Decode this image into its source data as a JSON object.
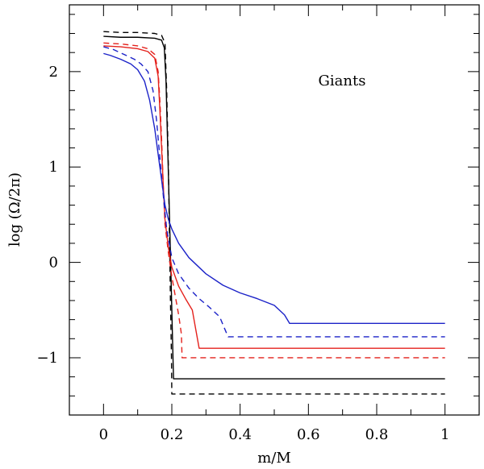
{
  "chart_data": {
    "type": "line",
    "title": "",
    "xlabel": "m/M",
    "ylabel": "log  (Ω/2π)",
    "annotation": "Giants",
    "xlim": [
      -0.1,
      1.1
    ],
    "ylim": [
      -1.6,
      2.7
    ],
    "x_ticks": [
      0,
      0.2,
      0.4,
      0.6,
      0.8,
      1
    ],
    "x_tick_labels": [
      "0",
      "0.2",
      "0.4",
      "0.6",
      "0.8",
      "1"
    ],
    "y_ticks": [
      -1,
      0,
      1,
      2
    ],
    "y_tick_labels": [
      "−1",
      "0",
      "1",
      "2"
    ],
    "grid": false,
    "series": [
      {
        "color": "#000000",
        "dash": true,
        "points": [
          [
            0,
            2.42
          ],
          [
            0.05,
            2.41
          ],
          [
            0.1,
            2.41
          ],
          [
            0.15,
            2.4
          ],
          [
            0.17,
            2.38
          ],
          [
            0.18,
            2.3
          ],
          [
            0.185,
            1.8
          ],
          [
            0.19,
            1.0
          ],
          [
            0.193,
            0.3
          ],
          [
            0.196,
            -0.4
          ],
          [
            0.199,
            -1.0
          ],
          [
            0.2,
            -1.38
          ],
          [
            0.3,
            -1.38
          ],
          [
            0.5,
            -1.38
          ],
          [
            0.7,
            -1.38
          ],
          [
            1,
            -1.38
          ]
        ]
      },
      {
        "color": "#000000",
        "dash": false,
        "points": [
          [
            0,
            2.37
          ],
          [
            0.05,
            2.36
          ],
          [
            0.1,
            2.36
          ],
          [
            0.15,
            2.35
          ],
          [
            0.17,
            2.33
          ],
          [
            0.178,
            2.25
          ],
          [
            0.183,
            1.9
          ],
          [
            0.188,
            1.2
          ],
          [
            0.193,
            0.5
          ],
          [
            0.198,
            -0.2
          ],
          [
            0.202,
            -0.8
          ],
          [
            0.205,
            -1.22
          ],
          [
            0.3,
            -1.22
          ],
          [
            0.5,
            -1.22
          ],
          [
            0.7,
            -1.22
          ],
          [
            1,
            -1.22
          ]
        ]
      },
      {
        "color": "#e4211c",
        "dash": true,
        "points": [
          [
            0,
            2.3
          ],
          [
            0.05,
            2.29
          ],
          [
            0.1,
            2.27
          ],
          [
            0.13,
            2.24
          ],
          [
            0.15,
            2.18
          ],
          [
            0.16,
            2.0
          ],
          [
            0.165,
            1.7
          ],
          [
            0.17,
            1.3
          ],
          [
            0.175,
            0.8
          ],
          [
            0.18,
            0.4
          ],
          [
            0.19,
            0.1
          ],
          [
            0.2,
            -0.15
          ],
          [
            0.21,
            -0.35
          ],
          [
            0.22,
            -0.55
          ],
          [
            0.228,
            -0.75
          ],
          [
            0.23,
            -1.0
          ],
          [
            0.3,
            -1.0
          ],
          [
            0.5,
            -1.0
          ],
          [
            0.7,
            -1.0
          ],
          [
            1,
            -1.0
          ]
        ]
      },
      {
        "color": "#e4211c",
        "dash": false,
        "points": [
          [
            0,
            2.27
          ],
          [
            0.05,
            2.26
          ],
          [
            0.1,
            2.24
          ],
          [
            0.13,
            2.21
          ],
          [
            0.15,
            2.14
          ],
          [
            0.16,
            1.95
          ],
          [
            0.165,
            1.6
          ],
          [
            0.17,
            1.2
          ],
          [
            0.175,
            0.8
          ],
          [
            0.18,
            0.45
          ],
          [
            0.19,
            0.15
          ],
          [
            0.2,
            -0.05
          ],
          [
            0.22,
            -0.25
          ],
          [
            0.24,
            -0.38
          ],
          [
            0.26,
            -0.5
          ],
          [
            0.27,
            -0.7
          ],
          [
            0.28,
            -0.9
          ],
          [
            0.4,
            -0.9
          ],
          [
            0.6,
            -0.9
          ],
          [
            0.8,
            -0.9
          ],
          [
            1,
            -0.9
          ]
        ]
      },
      {
        "color": "#1b22c8",
        "dash": true,
        "points": [
          [
            0,
            2.26
          ],
          [
            0.03,
            2.23
          ],
          [
            0.06,
            2.18
          ],
          [
            0.09,
            2.13
          ],
          [
            0.11,
            2.08
          ],
          [
            0.13,
            2.0
          ],
          [
            0.145,
            1.8
          ],
          [
            0.155,
            1.5
          ],
          [
            0.165,
            1.1
          ],
          [
            0.175,
            0.7
          ],
          [
            0.185,
            0.35
          ],
          [
            0.2,
            0.05
          ],
          [
            0.22,
            -0.12
          ],
          [
            0.25,
            -0.27
          ],
          [
            0.28,
            -0.38
          ],
          [
            0.31,
            -0.47
          ],
          [
            0.34,
            -0.57
          ],
          [
            0.36,
            -0.74
          ],
          [
            0.365,
            -0.78
          ],
          [
            0.5,
            -0.78
          ],
          [
            0.7,
            -0.78
          ],
          [
            1,
            -0.78
          ]
        ]
      },
      {
        "color": "#1b22c8",
        "dash": false,
        "points": [
          [
            0,
            2.19
          ],
          [
            0.02,
            2.17
          ],
          [
            0.05,
            2.13
          ],
          [
            0.08,
            2.08
          ],
          [
            0.1,
            2.02
          ],
          [
            0.12,
            1.9
          ],
          [
            0.135,
            1.7
          ],
          [
            0.15,
            1.4
          ],
          [
            0.165,
            1.0
          ],
          [
            0.18,
            0.6
          ],
          [
            0.19,
            0.45
          ],
          [
            0.2,
            0.35
          ],
          [
            0.22,
            0.2
          ],
          [
            0.25,
            0.05
          ],
          [
            0.3,
            -0.12
          ],
          [
            0.35,
            -0.24
          ],
          [
            0.4,
            -0.32
          ],
          [
            0.45,
            -0.38
          ],
          [
            0.5,
            -0.45
          ],
          [
            0.53,
            -0.55
          ],
          [
            0.545,
            -0.64
          ],
          [
            0.6,
            -0.64
          ],
          [
            0.8,
            -0.64
          ],
          [
            1,
            -0.64
          ]
        ]
      }
    ]
  }
}
